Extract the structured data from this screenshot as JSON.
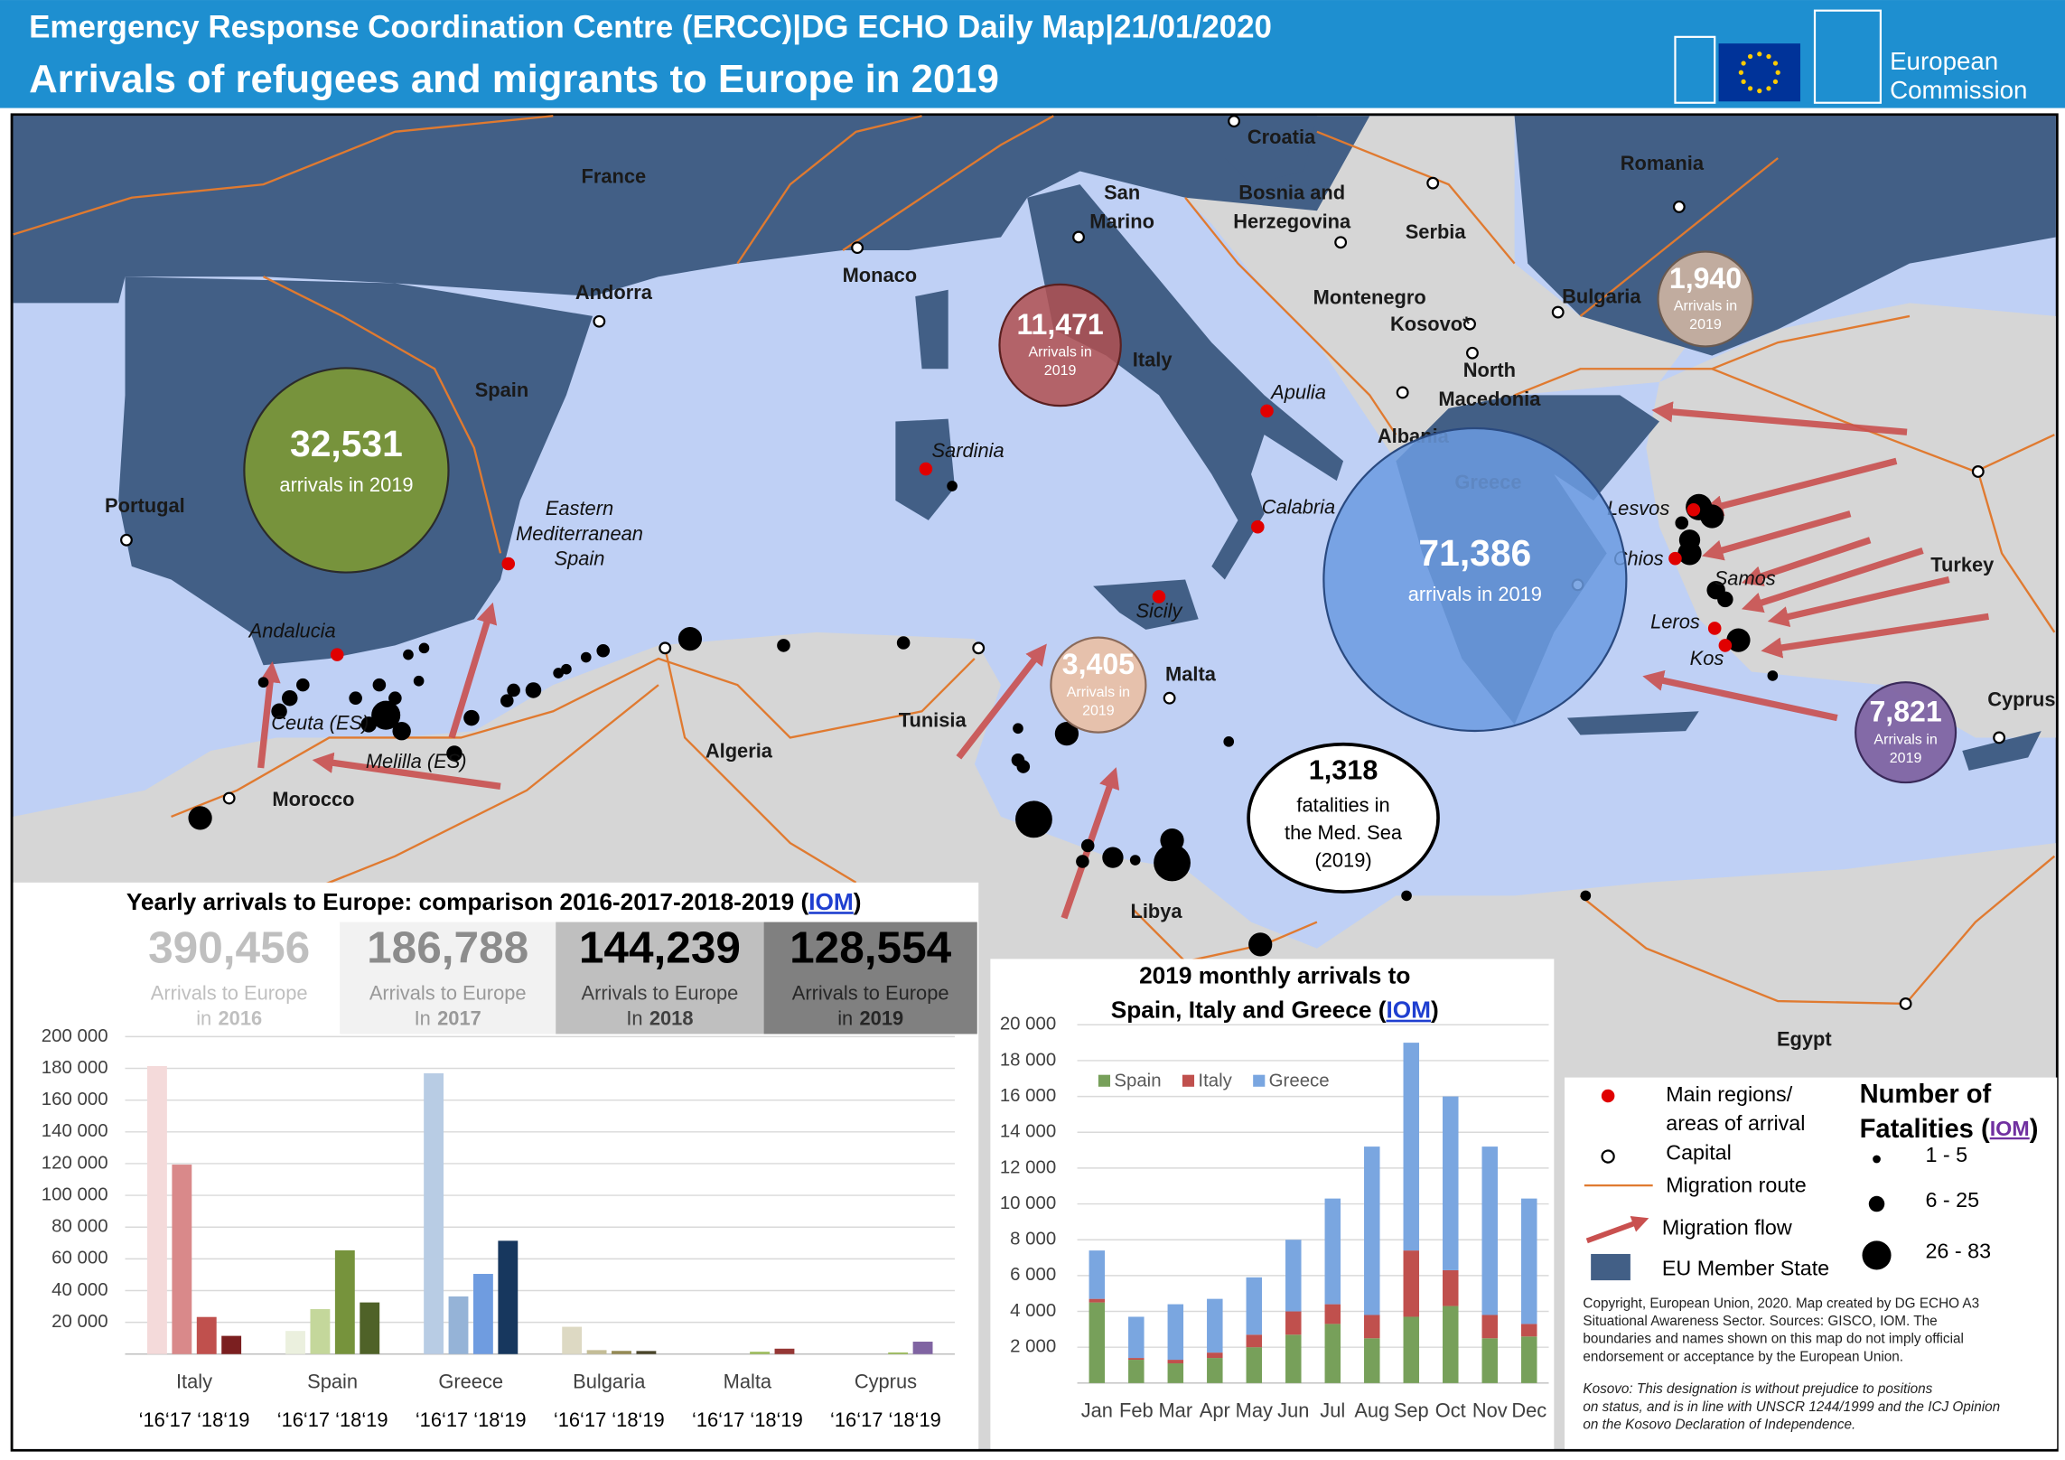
{
  "header": {
    "line1": "Emergency Response Coordination  Centre (ERCC)|DG ECHO Daily Map|21/01/2020",
    "title": "Arrivals of refugees and migrants to Europe in 2019",
    "logo": [
      "European",
      "Commission"
    ]
  },
  "map": {
    "countries": [
      "France",
      "Andorra",
      "Spain",
      "Portugal",
      "Monaco",
      [
        "San",
        "Marino"
      ],
      "Croatia",
      [
        "Bosnia and",
        "Herzegovina"
      ],
      "Serbia",
      "Romania",
      "Bulgaria",
      "Montenegro",
      "Kosovo*",
      [
        "North",
        "Macedonia"
      ],
      "Albania",
      "Italy",
      "Greece",
      "Turkey",
      "Cyprus",
      "Malta",
      "Tunisia",
      "Algeria",
      "Morocco",
      "Libya",
      "Egypt"
    ],
    "regions": [
      "Sardinia",
      "Apulia",
      "Calabria",
      "Sicily",
      [
        "Eastern",
        "Mediterranean",
        "Spain"
      ],
      "Andalucia",
      "Ceuta (ES)",
      "Melilla (ES)",
      "Lesvos",
      "Chios",
      "Samos",
      "Leros",
      "Kos"
    ],
    "bubbles": [
      {
        "value": 32531,
        "label": "32,531",
        "caption": [
          "arrivals in 2019"
        ]
      },
      {
        "value": 11471,
        "label": "11,471",
        "caption": [
          "Arrivals in",
          "2019"
        ]
      },
      {
        "value": 1940,
        "label": "1,940",
        "caption": [
          "Arrivals in",
          "2019"
        ]
      },
      {
        "value": 3405,
        "label": "3,405",
        "caption": [
          "Arrivals in",
          "2019"
        ]
      },
      {
        "value": 71386,
        "label": "71,386",
        "caption": [
          "arrivals in 2019"
        ]
      },
      {
        "value": 7821,
        "label": "7,821",
        "caption": [
          "Arrivals in",
          "2019"
        ]
      }
    ],
    "fatalities": {
      "label": "1,318",
      "caption": [
        "fatalities in",
        "the Med. Sea",
        "(2019)"
      ]
    }
  },
  "yearly": {
    "title": [
      "Yearly arrivals to Europe: comparison 2016-2017-2018-2019 (",
      "IOM",
      ")"
    ],
    "totals": [
      {
        "value": "390,456",
        "caption": "Arrivals to Europe",
        "prefix": "in",
        "year": "2016"
      },
      {
        "value": "186,788",
        "caption": "Arrivals to Europe",
        "prefix": "In",
        "year": "2017"
      },
      {
        "value": "144,239",
        "caption": "Arrivals to Europe",
        "prefix": "In",
        "year": "2018"
      },
      {
        "value": "128,554",
        "caption": "Arrivals to Europe",
        "prefix": "in",
        "year": "2019"
      }
    ]
  },
  "chart_data": [
    {
      "type": "bar",
      "categories": [
        "Italy",
        "Spain",
        "Greece",
        "Bulgaria",
        "Malta",
        "Cyprus"
      ],
      "x_sublabels": [
        "‘16‘17 ‘18‘19",
        "‘16‘17 ‘18‘19",
        "‘16‘17 ‘18‘19",
        "‘16‘17 ‘18‘19",
        "‘16‘17 ‘18‘19",
        "‘16‘17 ‘18‘19"
      ],
      "series": [
        {
          "colors": [
            "#f4dada",
            "#ebf0de",
            "#b8cce4",
            "#ddd9c3",
            "#f2dcdb",
            "#e4dfec"
          ],
          "values": [
            181436,
            14558,
            176906,
            17187,
            0,
            0
          ]
        },
        {
          "colors": [
            "#d9898a",
            "#c4d79b",
            "#95b3d7",
            "#c4bd97",
            "#e6b9b8",
            "#ccc0da"
          ],
          "values": [
            119369,
            28349,
            36310,
            2500,
            0,
            0
          ]
        },
        {
          "colors": [
            "#c0504d",
            "#76933c",
            "#6f9ce0",
            "#948a54",
            "#9bbb59",
            "#9bbb59"
          ],
          "values": [
            23370,
            65383,
            50508,
            2000,
            1445,
            1000
          ]
        },
        {
          "colors": [
            "#7b1f20",
            "#4f6228",
            "#17375e",
            "#4a452a",
            "#953735",
            "#8064a2"
          ],
          "values": [
            11471,
            32531,
            71386,
            1940,
            3405,
            7821
          ]
        }
      ],
      "ylim": [
        0,
        200000
      ],
      "yticks": [
        {
          "value": 20000,
          "label": "20 000"
        },
        {
          "value": 40000,
          "label": "40 000"
        },
        {
          "value": 60000,
          "label": "60 000"
        },
        {
          "value": 80000,
          "label": "80 000"
        },
        {
          "value": 100000,
          "label": "100 000"
        },
        {
          "value": 120000,
          "label": "120 000"
        },
        {
          "value": 140000,
          "label": "140 000"
        },
        {
          "value": 160000,
          "label": "160 000"
        },
        {
          "value": 180000,
          "label": "180 000"
        },
        {
          "value": 200000,
          "label": "200 000"
        }
      ],
      "grid": true
    },
    {
      "type": "stacked_bar",
      "title": [
        "2019 monthly arrivals to",
        "Spain, Italy and Greece (",
        "IOM",
        ")"
      ],
      "categories": [
        "Jan",
        "Feb",
        "Mar",
        "Apr",
        "May",
        "Jun",
        "Jul",
        "Aug",
        "Sep",
        "Oct",
        "Nov",
        "Dec"
      ],
      "series": [
        {
          "name": "Spain",
          "color": "#77a05a",
          "values": [
            4500,
            1300,
            1100,
            1400,
            2000,
            2700,
            3300,
            2500,
            3700,
            4300,
            2500,
            2600
          ]
        },
        {
          "name": "Italy",
          "color": "#c0504d",
          "values": [
            200,
            100,
            200,
            300,
            700,
            1300,
            1100,
            1300,
            3700,
            2000,
            1300,
            700
          ]
        },
        {
          "name": "Greece",
          "color": "#7aa6e0",
          "values": [
            2700,
            2300,
            3100,
            3000,
            3200,
            4000,
            5900,
            9400,
            11600,
            9700,
            9400,
            7000
          ]
        }
      ],
      "ylim": [
        0,
        20000
      ],
      "yticks": [
        {
          "value": 2000,
          "label": "2 000"
        },
        {
          "value": 4000,
          "label": "4 000"
        },
        {
          "value": 6000,
          "label": "6 000"
        },
        {
          "value": 8000,
          "label": "8 000"
        },
        {
          "value": 10000,
          "label": "10 000"
        },
        {
          "value": 12000,
          "label": "12 000"
        },
        {
          "value": 14000,
          "label": "14 000"
        },
        {
          "value": 16000,
          "label": "16 000"
        },
        {
          "value": 18000,
          "label": "18 000"
        },
        {
          "value": 20000,
          "label": "20 000"
        }
      ],
      "grid": true,
      "legend": "top-left"
    }
  ],
  "legend": {
    "items": [
      [
        "Main regions/",
        "areas of arrival"
      ],
      "Capital",
      "Migration route",
      "Migration flow",
      "EU Member State"
    ],
    "fatalities_title": [
      "Number of",
      "Fatalities (",
      "IOM",
      ")"
    ],
    "fatalities_sizes": [
      "1 - 5",
      "6 - 25",
      "26 - 83"
    ]
  },
  "copyright": [
    "Copyright, European Union, 2020. Map created by DG ECHO A3",
    "Situational Awareness Sector. Sources: GISCO, IOM. The",
    "boundaries and names shown on this map do not imply official",
    "endorsement or acceptance by the European Union."
  ],
  "kosovo_note": [
    "Kosovo: This designation is without prejudice to positions",
    "on status, and is in line with UNSCR 1244/1999 and the ICJ Opinion",
    "on the Kosovo Declaration of Independence."
  ]
}
